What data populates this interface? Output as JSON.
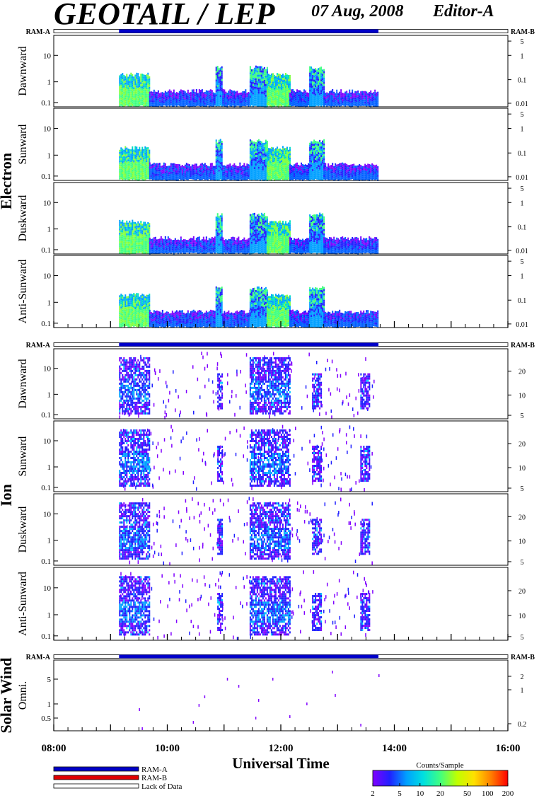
{
  "header": {
    "title": "GEOTAIL / LEP",
    "date": "07 Aug, 2008",
    "editor": "Editor-A"
  },
  "colors": {
    "ram_a": "#0000c8",
    "ram_b": "#e00000",
    "lack": "#ffffff",
    "colorbar": [
      "#8000ff",
      "#2020ff",
      "#00a0ff",
      "#00e0e0",
      "#40ff80",
      "#c0ff00",
      "#ffe000",
      "#ff8000",
      "#ff0000"
    ]
  },
  "chart_data": {
    "type": "heatmap",
    "x_axis": {
      "label": "Universal Time",
      "range": [
        "08:00",
        "16:00"
      ],
      "ticks": [
        "08:00",
        "10:00",
        "12:00",
        "14:00",
        "16:00"
      ]
    },
    "data_coverage_ut": [
      9.15,
      13.72
    ],
    "ram_label_left": "RAM-A",
    "ram_label_right": "RAM-B",
    "groups": [
      {
        "label": "Electron",
        "panels": [
          {
            "label": "Dawnward",
            "left_ticks": [
              "10",
              "1",
              "0.1"
            ],
            "right_ticks": [
              "5",
              "1",
              "0.1",
              "0.01"
            ]
          },
          {
            "label": "Sunward",
            "left_ticks": [
              "10",
              "1",
              "0.1"
            ],
            "right_ticks": [
              "5",
              "1",
              "0.1",
              "0.01"
            ]
          },
          {
            "label": "Duskward",
            "left_ticks": [
              "10",
              "1",
              "0.1"
            ],
            "right_ticks": [
              "5",
              "1",
              "0.1",
              "0.01"
            ]
          },
          {
            "label": "Anti-Sunward",
            "left_ticks": [
              "10",
              "1",
              "0.1"
            ],
            "right_ticks": [
              "5",
              "1",
              "0.1",
              "0.01"
            ]
          }
        ]
      },
      {
        "label": "Ion",
        "panels": [
          {
            "label": "Dawnward",
            "left_ticks": [
              "10",
              "1",
              "0.1"
            ],
            "right_ticks": [
              "20",
              "10",
              "5"
            ]
          },
          {
            "label": "Sunward",
            "left_ticks": [
              "10",
              "1",
              "0.1"
            ],
            "right_ticks": [
              "20",
              "10",
              "5"
            ]
          },
          {
            "label": "Duskward",
            "left_ticks": [
              "10",
              "1",
              "0.1"
            ],
            "right_ticks": [
              "20",
              "10",
              "5"
            ]
          },
          {
            "label": "Anti-Sunward",
            "left_ticks": [
              "10",
              "1",
              "0.1"
            ],
            "right_ticks": [
              "20",
              "10",
              "5"
            ]
          }
        ]
      },
      {
        "label": "Solar Wind",
        "panels": [
          {
            "label": "Omni.",
            "left_ticks": [
              "5",
              "1",
              "0.5"
            ],
            "right_ticks": [
              "2",
              "1",
              "0.2"
            ]
          }
        ]
      }
    ],
    "electron_activity_ut": [
      {
        "start": 9.15,
        "end": 9.68,
        "level": "high"
      },
      {
        "start": 9.68,
        "end": 10.85,
        "level": "low"
      },
      {
        "start": 10.85,
        "end": 10.97,
        "level": "medium"
      },
      {
        "start": 10.97,
        "end": 11.45,
        "level": "low"
      },
      {
        "start": 11.45,
        "end": 11.75,
        "level": "medium"
      },
      {
        "start": 11.75,
        "end": 12.15,
        "level": "high"
      },
      {
        "start": 12.15,
        "end": 12.5,
        "level": "low"
      },
      {
        "start": 12.5,
        "end": 12.75,
        "level": "medium"
      },
      {
        "start": 12.75,
        "end": 13.72,
        "level": "low"
      }
    ],
    "ion_activity_ut": [
      {
        "start": 9.15,
        "end": 9.68,
        "level": "high"
      },
      {
        "start": 10.88,
        "end": 10.96,
        "level": "medium"
      },
      {
        "start": 11.45,
        "end": 12.15,
        "level": "high"
      },
      {
        "start": 12.55,
        "end": 12.72,
        "level": "medium"
      },
      {
        "start": 13.4,
        "end": 13.55,
        "level": "medium"
      }
    ],
    "colorbar": {
      "title": "Counts/Sample",
      "ticks": [
        "2",
        "5",
        "10",
        "20",
        "50",
        "100",
        "200"
      ],
      "scale": "log"
    },
    "legend": [
      {
        "name": "RAM-A",
        "color": "#0000c8"
      },
      {
        "name": "RAM-B",
        "color": "#e00000"
      },
      {
        "name": "Lack of Data",
        "color": "#ffffff"
      }
    ]
  }
}
